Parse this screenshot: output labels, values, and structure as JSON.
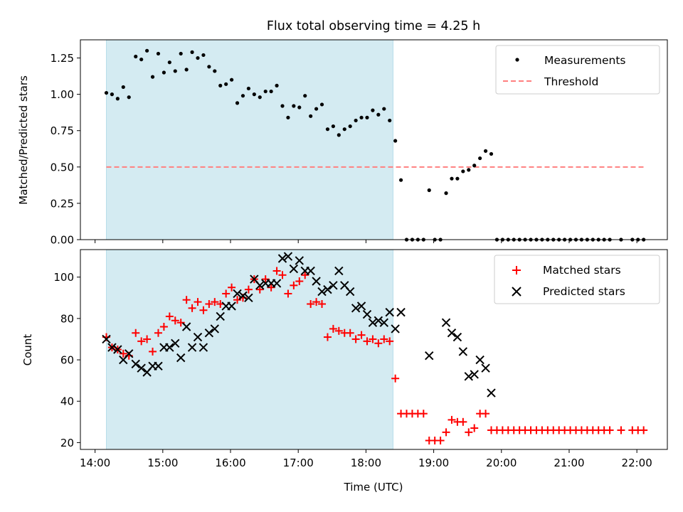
{
  "chart_data": [
    {
      "type": "scatter",
      "title": "Flux total observing time = 4.25 h",
      "ylabel": "Matched/Predicted stars",
      "xlabel": "",
      "ylim": [
        0,
        1.375
      ],
      "yticks": [
        0.0,
        0.25,
        0.5,
        0.75,
        1.0,
        1.25
      ],
      "ytick_labels": [
        "0.00",
        "0.25",
        "0.50",
        "0.75",
        "1.00",
        "1.25"
      ],
      "xlim": [
        "13:47",
        "22:27"
      ],
      "shaded_interval": [
        "14:10",
        "18:24"
      ],
      "shade_color": "#add8e6",
      "legend_position": "top-right",
      "series": [
        {
          "name": "Measurements",
          "marker": "dot",
          "color": "#000000",
          "points": [
            [
              "14:10",
              1.01
            ],
            [
              "14:15",
              1.0
            ],
            [
              "14:20",
              0.97
            ],
            [
              "14:25",
              1.05
            ],
            [
              "14:30",
              0.98
            ],
            [
              "14:36",
              1.26
            ],
            [
              "14:41",
              1.24
            ],
            [
              "14:46",
              1.3
            ],
            [
              "14:51",
              1.12
            ],
            [
              "14:56",
              1.28
            ],
            [
              "15:01",
              1.15
            ],
            [
              "15:06",
              1.22
            ],
            [
              "15:11",
              1.16
            ],
            [
              "15:16",
              1.28
            ],
            [
              "15:21",
              1.17
            ],
            [
              "15:26",
              1.29
            ],
            [
              "15:31",
              1.25
            ],
            [
              "15:36",
              1.27
            ],
            [
              "15:41",
              1.19
            ],
            [
              "15:46",
              1.16
            ],
            [
              "15:51",
              1.06
            ],
            [
              "15:56",
              1.07
            ],
            [
              "16:01",
              1.1
            ],
            [
              "16:06",
              0.94
            ],
            [
              "16:11",
              0.99
            ],
            [
              "16:16",
              1.04
            ],
            [
              "16:21",
              1.0
            ],
            [
              "16:26",
              0.98
            ],
            [
              "16:31",
              1.02
            ],
            [
              "16:36",
              1.02
            ],
            [
              "16:41",
              1.06
            ],
            [
              "16:46",
              0.92
            ],
            [
              "16:51",
              0.84
            ],
            [
              "16:56",
              0.92
            ],
            [
              "17:01",
              0.91
            ],
            [
              "17:06",
              0.99
            ],
            [
              "17:11",
              0.85
            ],
            [
              "17:16",
              0.9
            ],
            [
              "17:21",
              0.93
            ],
            [
              "17:26",
              0.76
            ],
            [
              "17:31",
              0.78
            ],
            [
              "17:36",
              0.72
            ],
            [
              "17:41",
              0.76
            ],
            [
              "17:46",
              0.78
            ],
            [
              "17:51",
              0.82
            ],
            [
              "17:56",
              0.84
            ],
            [
              "18:01",
              0.84
            ],
            [
              "18:06",
              0.89
            ],
            [
              "18:11",
              0.86
            ],
            [
              "18:16",
              0.9
            ],
            [
              "18:21",
              0.82
            ],
            [
              "18:26",
              0.68
            ],
            [
              "18:31",
              0.41
            ],
            [
              "18:36",
              0.0
            ],
            [
              "18:41",
              0.0
            ],
            [
              "18:46",
              0.0
            ],
            [
              "18:51",
              0.0
            ],
            [
              "18:56",
              0.34
            ],
            [
              "19:01",
              0.0
            ],
            [
              "19:06",
              0.0
            ],
            [
              "19:11",
              0.32
            ],
            [
              "19:16",
              0.42
            ],
            [
              "19:21",
              0.42
            ],
            [
              "19:26",
              0.47
            ],
            [
              "19:31",
              0.48
            ],
            [
              "19:36",
              0.51
            ],
            [
              "19:41",
              0.56
            ],
            [
              "19:46",
              0.61
            ],
            [
              "19:51",
              0.59
            ],
            [
              "19:56",
              0.0
            ],
            [
              "20:01",
              0.0
            ],
            [
              "20:06",
              0.0
            ],
            [
              "20:11",
              0.0
            ],
            [
              "20:16",
              0.0
            ],
            [
              "20:21",
              0.0
            ],
            [
              "20:26",
              0.0
            ],
            [
              "20:31",
              0.0
            ],
            [
              "20:36",
              0.0
            ],
            [
              "20:41",
              0.0
            ],
            [
              "20:46",
              0.0
            ],
            [
              "20:51",
              0.0
            ],
            [
              "20:56",
              0.0
            ],
            [
              "21:01",
              0.0
            ],
            [
              "21:06",
              0.0
            ],
            [
              "21:11",
              0.0
            ],
            [
              "21:16",
              0.0
            ],
            [
              "21:21",
              0.0
            ],
            [
              "21:26",
              0.0
            ],
            [
              "21:31",
              0.0
            ],
            [
              "21:36",
              0.0
            ],
            [
              "21:46",
              0.0
            ],
            [
              "21:56",
              0.0
            ],
            [
              "22:01",
              0.0
            ],
            [
              "22:06",
              0.0
            ]
          ]
        },
        {
          "name": "Threshold",
          "marker": "dashed-line",
          "color": "#ff7f7f",
          "points": [
            [
              "14:10",
              0.5
            ],
            [
              "22:06",
              0.5
            ]
          ]
        }
      ]
    },
    {
      "type": "scatter",
      "title": "",
      "ylabel": "Count",
      "xlabel": "Time (UTC)",
      "ylim": [
        16.7,
        113.3
      ],
      "yticks": [
        20,
        40,
        60,
        80,
        100
      ],
      "ytick_labels": [
        "20",
        "40",
        "60",
        "80",
        "100"
      ],
      "xlim": [
        "13:47",
        "22:27"
      ],
      "xticks": [
        "14:00",
        "15:00",
        "16:00",
        "17:00",
        "18:00",
        "19:00",
        "20:00",
        "21:00",
        "22:00"
      ],
      "shaded_interval": [
        "14:10",
        "18:24"
      ],
      "shade_color": "#add8e6",
      "legend_position": "top-right",
      "series": [
        {
          "name": "Matched stars",
          "marker": "plus",
          "color": "#ff0000",
          "points": [
            [
              "14:10",
              71
            ],
            [
              "14:15",
              66
            ],
            [
              "14:20",
              65
            ],
            [
              "14:25",
              63
            ],
            [
              "14:30",
              62
            ],
            [
              "14:36",
              73
            ],
            [
              "14:41",
              69
            ],
            [
              "14:46",
              70
            ],
            [
              "14:51",
              64
            ],
            [
              "14:56",
              73
            ],
            [
              "15:01",
              76
            ],
            [
              "15:06",
              81
            ],
            [
              "15:11",
              79
            ],
            [
              "15:16",
              78
            ],
            [
              "15:21",
              89
            ],
            [
              "15:26",
              85
            ],
            [
              "15:31",
              88
            ],
            [
              "15:36",
              84
            ],
            [
              "15:41",
              87
            ],
            [
              "15:46",
              88
            ],
            [
              "15:51",
              87
            ],
            [
              "15:56",
              92
            ],
            [
              "16:01",
              95
            ],
            [
              "16:06",
              89
            ],
            [
              "16:11",
              90
            ],
            [
              "16:16",
              94
            ],
            [
              "16:21",
              99
            ],
            [
              "16:26",
              94
            ],
            [
              "16:31",
              99
            ],
            [
              "16:36",
              95
            ],
            [
              "16:41",
              103
            ],
            [
              "16:46",
              101
            ],
            [
              "16:51",
              92
            ],
            [
              "16:56",
              96
            ],
            [
              "17:01",
              98
            ],
            [
              "17:06",
              101
            ],
            [
              "17:11",
              87
            ],
            [
              "17:16",
              88
            ],
            [
              "17:21",
              87
            ],
            [
              "17:26",
              71
            ],
            [
              "17:31",
              75
            ],
            [
              "17:36",
              74
            ],
            [
              "17:41",
              73
            ],
            [
              "17:46",
              73
            ],
            [
              "17:51",
              70
            ],
            [
              "17:56",
              72
            ],
            [
              "18:01",
              69
            ],
            [
              "18:06",
              70
            ],
            [
              "18:11",
              68
            ],
            [
              "18:16",
              70
            ],
            [
              "18:21",
              69
            ],
            [
              "18:26",
              51
            ],
            [
              "18:31",
              34
            ],
            [
              "18:36",
              34
            ],
            [
              "18:41",
              34
            ],
            [
              "18:46",
              34
            ],
            [
              "18:51",
              34
            ],
            [
              "18:56",
              21
            ],
            [
              "19:01",
              21
            ],
            [
              "19:06",
              21
            ],
            [
              "19:11",
              25
            ],
            [
              "19:16",
              31
            ],
            [
              "19:21",
              30
            ],
            [
              "19:26",
              30
            ],
            [
              "19:31",
              25
            ],
            [
              "19:36",
              27
            ],
            [
              "19:41",
              34
            ],
            [
              "19:46",
              34
            ],
            [
              "19:51",
              26
            ],
            [
              "19:56",
              26
            ],
            [
              "20:01",
              26
            ],
            [
              "20:06",
              26
            ],
            [
              "20:11",
              26
            ],
            [
              "20:16",
              26
            ],
            [
              "20:21",
              26
            ],
            [
              "20:26",
              26
            ],
            [
              "20:31",
              26
            ],
            [
              "20:36",
              26
            ],
            [
              "20:41",
              26
            ],
            [
              "20:46",
              26
            ],
            [
              "20:51",
              26
            ],
            [
              "20:56",
              26
            ],
            [
              "21:01",
              26
            ],
            [
              "21:06",
              26
            ],
            [
              "21:11",
              26
            ],
            [
              "21:16",
              26
            ],
            [
              "21:21",
              26
            ],
            [
              "21:26",
              26
            ],
            [
              "21:31",
              26
            ],
            [
              "21:36",
              26
            ],
            [
              "21:46",
              26
            ],
            [
              "21:56",
              26
            ],
            [
              "22:01",
              26
            ],
            [
              "22:06",
              26
            ]
          ]
        },
        {
          "name": "Predicted stars",
          "marker": "x",
          "color": "#000000",
          "points": [
            [
              "14:10",
              70
            ],
            [
              "14:15",
              66
            ],
            [
              "14:20",
              65
            ],
            [
              "14:25",
              60
            ],
            [
              "14:30",
              63
            ],
            [
              "14:36",
              58
            ],
            [
              "14:41",
              56
            ],
            [
              "14:46",
              54
            ],
            [
              "14:51",
              57
            ],
            [
              "14:56",
              57
            ],
            [
              "15:01",
              66
            ],
            [
              "15:06",
              66
            ],
            [
              "15:11",
              68
            ],
            [
              "15:16",
              61
            ],
            [
              "15:21",
              76
            ],
            [
              "15:26",
              66
            ],
            [
              "15:31",
              71
            ],
            [
              "15:36",
              66
            ],
            [
              "15:41",
              73
            ],
            [
              "15:46",
              75
            ],
            [
              "15:51",
              81
            ],
            [
              "15:56",
              86
            ],
            [
              "16:01",
              86
            ],
            [
              "16:06",
              92
            ],
            [
              "16:11",
              91
            ],
            [
              "16:16",
              90
            ],
            [
              "16:21",
              99
            ],
            [
              "16:26",
              96
            ],
            [
              "16:31",
              97
            ],
            [
              "16:36",
              97
            ],
            [
              "16:41",
              97
            ],
            [
              "16:46",
              109
            ],
            [
              "16:51",
              110
            ],
            [
              "16:56",
              104
            ],
            [
              "17:01",
              108
            ],
            [
              "17:06",
              103
            ],
            [
              "17:11",
              103
            ],
            [
              "17:16",
              98
            ],
            [
              "17:21",
              93
            ],
            [
              "17:26",
              94
            ],
            [
              "17:31",
              96
            ],
            [
              "17:36",
              103
            ],
            [
              "17:41",
              96
            ],
            [
              "17:46",
              93
            ],
            [
              "17:51",
              85
            ],
            [
              "17:56",
              86
            ],
            [
              "18:01",
              82
            ],
            [
              "18:06",
              78
            ],
            [
              "18:11",
              79
            ],
            [
              "18:16",
              78
            ],
            [
              "18:21",
              83
            ],
            [
              "18:26",
              75
            ],
            [
              "18:31",
              83
            ],
            [
              "18:56",
              62
            ],
            [
              "19:11",
              78
            ],
            [
              "19:16",
              73
            ],
            [
              "19:21",
              71
            ],
            [
              "19:26",
              64
            ],
            [
              "19:31",
              52
            ],
            [
              "19:36",
              53
            ],
            [
              "19:41",
              60
            ],
            [
              "19:46",
              56
            ],
            [
              "19:51",
              44
            ]
          ]
        }
      ]
    }
  ]
}
